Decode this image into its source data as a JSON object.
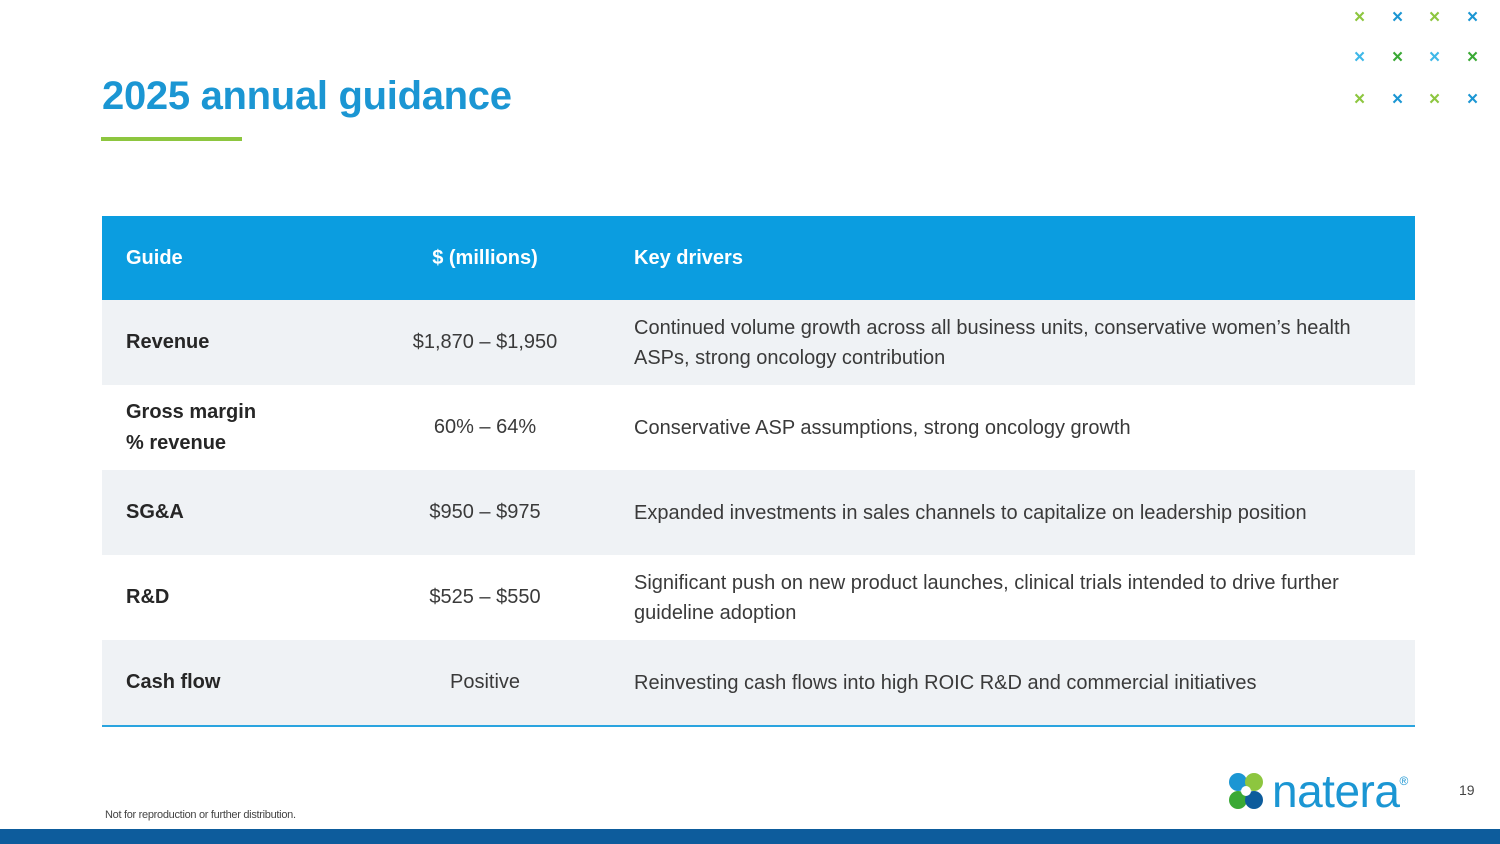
{
  "slide": {
    "title": "2025 annual guidance",
    "footnote": "Not for reproduction or further distribution.",
    "page_number": "19",
    "logo_text": "natera",
    "logo_reg": "®"
  },
  "colors": {
    "title": "#1b96d3",
    "accent_green": "#8dc63f",
    "header_blue": "#0b9de0",
    "row_shade": "#eff2f5",
    "bottom_bar": "#0d5c9c"
  },
  "decoration": {
    "glyph": "×",
    "colors": [
      "#8dc63f",
      "#1b96d3",
      "#8dc63f",
      "#1b96d3",
      "#3fb8e8",
      "#3aa935",
      "#3fb8e8",
      "#3aa935",
      "#8dc63f",
      "#1b96d3",
      "#8dc63f",
      "#1b96d3"
    ]
  },
  "table": {
    "headers": [
      "Guide",
      "$ (millions)",
      "Key drivers"
    ],
    "rows": [
      {
        "guide": "Revenue",
        "value": "$1,870 – $1,950",
        "drivers": "Continued volume growth across all business units, conservative women’s health ASPs, strong oncology contribution"
      },
      {
        "guide": "Gross margin % revenue",
        "value": "60% – 64%",
        "drivers": "Conservative ASP assumptions, strong oncology growth"
      },
      {
        "guide": "SG&A",
        "value": "$950 – $975",
        "drivers": "Expanded investments in sales channels to capitalize on leadership position"
      },
      {
        "guide": "R&D",
        "value": "$525 – $550",
        "drivers": "Significant push on new product launches, clinical trials intended to drive further guideline adoption"
      },
      {
        "guide": "Cash flow",
        "value": "Positive",
        "drivers": "Reinvesting cash flows into high ROIC R&D and commercial initiatives"
      }
    ]
  }
}
